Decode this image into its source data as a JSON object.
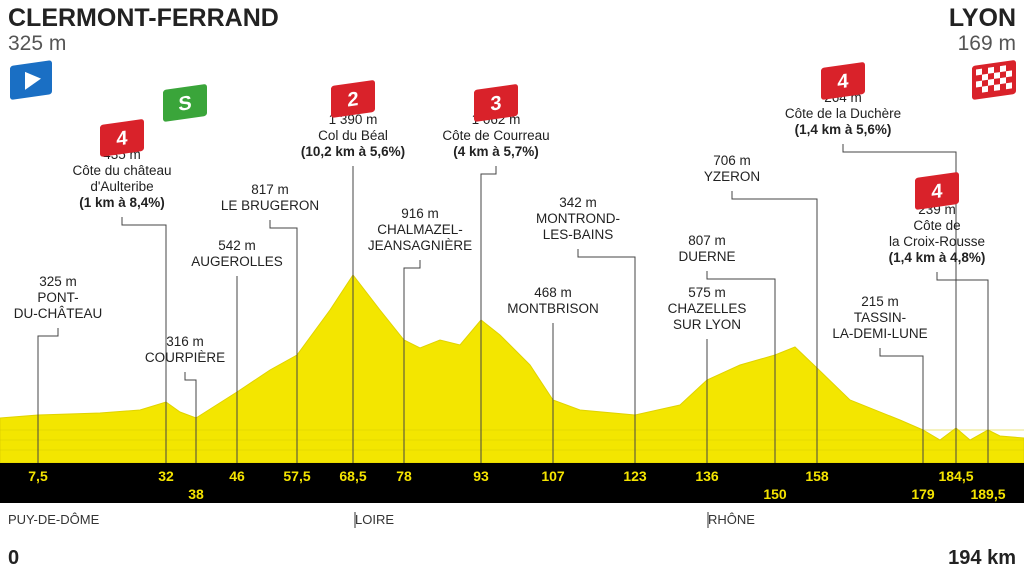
{
  "start": {
    "name": "CLERMONT-FERRAND",
    "altitude": "325 m"
  },
  "finish": {
    "name": "LYON",
    "altitude": "169 m"
  },
  "points": [
    {
      "km": "7,5",
      "lines": [
        "325 m",
        "PONT-",
        "DU-CHÂTEAU"
      ]
    },
    {
      "km": "32",
      "category": "4",
      "lines": [
        "435 m",
        "Côte du château",
        "d'Aulteribe",
        "(1 km à 8,4%)"
      ]
    },
    {
      "km": "38",
      "category": "S",
      "lines": [
        "316 m",
        "COURPIÈRE"
      ]
    },
    {
      "km": "46",
      "lines": [
        "542 m",
        "AUGEROLLES"
      ]
    },
    {
      "km": "57,5",
      "lines": [
        "817 m",
        "LE BRUGERON"
      ]
    },
    {
      "km": "68,5",
      "category": "2",
      "lines": [
        "1 390 m",
        "Col du Béal",
        "(10,2 km à 5,6%)"
      ]
    },
    {
      "km": "78",
      "lines": [
        "916 m",
        "CHALMAZEL-",
        "JEANSAGNIÈRE"
      ]
    },
    {
      "km": "93",
      "category": "3",
      "lines": [
        "1 062 m",
        "Côte de Courreau",
        "(4 km à 5,7%)"
      ]
    },
    {
      "km": "107",
      "lines": [
        "468 m",
        "MONTBRISON"
      ]
    },
    {
      "km": "123",
      "lines": [
        "342 m",
        "MONTROND-",
        "LES-BAINS"
      ]
    },
    {
      "km": "136",
      "lines": [
        "575 m",
        "CHAZELLES",
        "SUR LYON"
      ]
    },
    {
      "km": "150",
      "lines": [
        "807 m",
        "DUERNE"
      ]
    },
    {
      "km": "158",
      "lines": [
        "706 m",
        "YZERON"
      ]
    },
    {
      "km": "179",
      "lines": [
        "215 m",
        "TASSIN-",
        "LA-DEMI-LUNE"
      ]
    },
    {
      "km": "184,5",
      "category": "4",
      "lines": [
        "264 m",
        "Côte de la Duchère",
        "(1,4 km à 5,6%)"
      ]
    },
    {
      "km": "189,5",
      "category": "4",
      "lines": [
        "239 m",
        "Côte de",
        "la Croix-Rousse",
        "(1,4 km à 4,8%)"
      ]
    }
  ],
  "regions": [
    "PUY-DE-DÔME",
    "LOIRE",
    "RHÔNE"
  ],
  "distance": {
    "start": "0",
    "end": "194 km"
  }
}
